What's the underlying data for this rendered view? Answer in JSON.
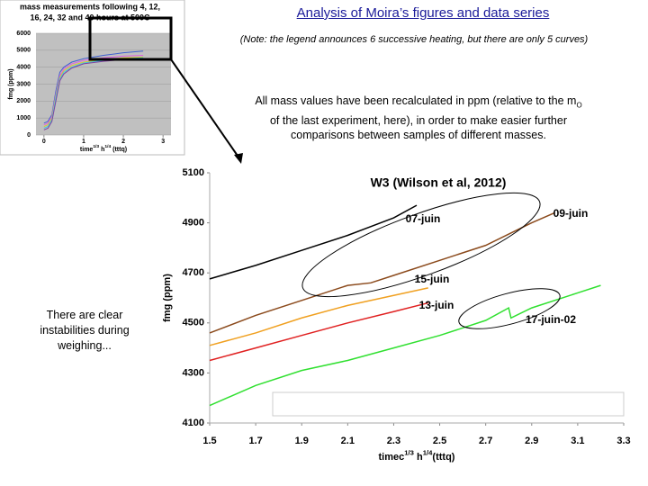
{
  "header": {
    "title": "Analysis of Moira’s figures and data series",
    "note": "(Note: the legend announces 6 successive heating, but there are only 5 curves)"
  },
  "paragraph": [
    "All mass values have been recalculated in ppm (relative to the m",
    "O",
    " of the last experiment, here), in order to make easier further comparisons between samples of different masses."
  ],
  "side_note": "There are clear instabilities during weighing...",
  "chart_data": [
    {
      "type": "line",
      "title": [
        "mass measurements following 4, 12,",
        "16, 24, 32 and 40 hours at 500C"
      ],
      "y_label": "fmg (ppm)",
      "x_label": [
        "time",
        "1/3",
        " h",
        "1/4",
        " (tttq)"
      ],
      "x": [
        0,
        0.1,
        0.2,
        0.3,
        0.4,
        0.5,
        0.7,
        1,
        1.5,
        2,
        2.5
      ],
      "series": [
        {
          "color": "#4060d0",
          "values": [
            700,
            800,
            1200,
            2600,
            3700,
            4000,
            4300,
            4500,
            4700,
            4850,
            4950
          ]
        },
        {
          "color": "#e060e0",
          "values": [
            600,
            700,
            1100,
            2400,
            3500,
            3900,
            4200,
            4400,
            4550,
            4650,
            4700
          ]
        },
        {
          "color": "#d8c830",
          "values": [
            500,
            600,
            1000,
            2300,
            3400,
            3800,
            4100,
            4300,
            4450,
            4550,
            4600
          ]
        },
        {
          "color": "#40c8e0",
          "values": [
            400,
            500,
            900,
            2200,
            3300,
            3700,
            4000,
            4250,
            4400,
            4500,
            4550
          ]
        },
        {
          "color": "#8040a0",
          "values": [
            300,
            400,
            800,
            2000,
            3200,
            3600,
            3950,
            4200,
            4350,
            4450,
            4500
          ]
        }
      ],
      "xlim": [
        -0.2,
        3.2
      ],
      "xticks": [
        0,
        1,
        2,
        3
      ],
      "ylim": [
        0,
        6000
      ],
      "yticks": [
        0,
        1000,
        2000,
        3000,
        4000,
        5000,
        6000
      ],
      "grid": true
    },
    {
      "type": "line",
      "title": "W3 (Wilson et al, 2012)",
      "y_label": "fmg (ppm)",
      "x_label": [
        "timec",
        "1/3",
        " h",
        "1/4",
        "(tttq)"
      ],
      "series": [
        {
          "name": "07-juin",
          "color": "#000000",
          "x": [
            1.5,
            1.7,
            1.9,
            2.1,
            2.3,
            2.4
          ],
          "values": [
            4676,
            4730,
            4790,
            4850,
            4920,
            4970
          ]
        },
        {
          "name": "09-juin",
          "color": "#8b4a1c",
          "x": [
            1.5,
            1.7,
            1.9,
            2.1,
            2.2,
            2.3,
            2.5,
            2.7,
            2.9,
            3.0
          ],
          "values": [
            4460,
            4530,
            4590,
            4650,
            4660,
            4690,
            4750,
            4810,
            4900,
            4940
          ]
        },
        {
          "name": "13-juin",
          "color": "#e02020",
          "x": [
            1.5,
            1.7,
            1.9,
            2.1,
            2.3,
            2.45
          ],
          "values": [
            4350,
            4400,
            4450,
            4500,
            4545,
            4580
          ]
        },
        {
          "name": "15-juin",
          "color": "#f0a020",
          "x": [
            1.5,
            1.7,
            1.9,
            2.1,
            2.3,
            2.45
          ],
          "values": [
            4410,
            4460,
            4520,
            4570,
            4610,
            4640
          ]
        },
        {
          "name": "17-juin-02",
          "color": "#30e030",
          "x": [
            1.5,
            1.7,
            1.9,
            2.1,
            2.3,
            2.5,
            2.7,
            2.8,
            2.81,
            2.9,
            3.1,
            3.2
          ],
          "values": [
            4170,
            4250,
            4310,
            4350,
            4400,
            4450,
            4510,
            4560,
            4520,
            4560,
            4620,
            4650
          ]
        }
      ],
      "xlim": [
        1.5,
        3.3
      ],
      "xticks": [
        1.5,
        1.7,
        1.9,
        2.1,
        2.3,
        2.5,
        2.7,
        2.9,
        3.1,
        3.3
      ],
      "ylim": [
        4100,
        5100
      ],
      "yticks": [
        4100,
        4300,
        4500,
        4700,
        4900,
        5100
      ],
      "grid": false,
      "legend": "bottom"
    }
  ]
}
